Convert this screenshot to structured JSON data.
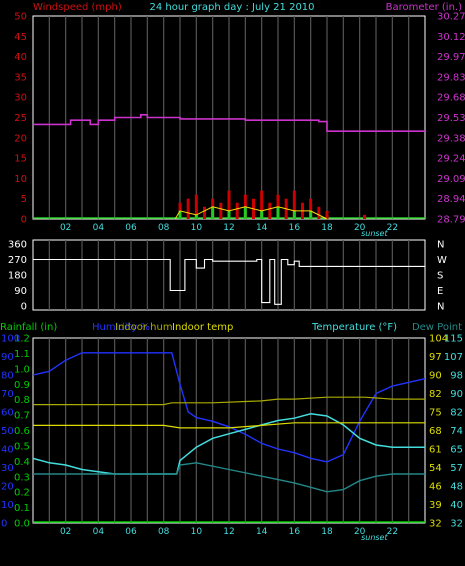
{
  "chart_data": [
    {
      "type": "line",
      "title": "24 hour graph day : July 21 2010",
      "left_axis_title": "Windspeed (mph)",
      "right_axis_title": "Barometer (in.)",
      "x_ticks": [
        "02",
        "04",
        "06",
        "08",
        "10",
        "12",
        "14",
        "16",
        "18",
        "20",
        "22"
      ],
      "x_marker": "sunset",
      "left_ticks": [
        "0",
        "5",
        "10",
        "15",
        "20",
        "25",
        "30",
        "35",
        "40",
        "45",
        "50"
      ],
      "right_ticks": [
        "28.79",
        "28.94",
        "29.09",
        "29.24",
        "29.38",
        "29.53",
        "29.68",
        "29.83",
        "29.97",
        "30.12",
        "30.27"
      ],
      "left_range": [
        0,
        50
      ],
      "right_range": [
        28.79,
        30.27
      ],
      "colors": {
        "barometer": "#cc33cc",
        "wind_gust": "#cc0000",
        "wind_avg": "#22cc22",
        "wind_line": "#ffdd00"
      },
      "series": [
        {
          "key": "barometer",
          "x": [
            0,
            2,
            2.3,
            3.2,
            3.5,
            4,
            4.6,
            5,
            6.6,
            7,
            8.3,
            9,
            11,
            13,
            16,
            17.5,
            18,
            24
          ],
          "y": [
            29.48,
            29.48,
            29.51,
            29.51,
            29.48,
            29.51,
            29.51,
            29.53,
            29.55,
            29.53,
            29.53,
            29.52,
            29.52,
            29.51,
            29.51,
            29.5,
            29.43,
            29.43
          ]
        },
        {
          "key": "wind_gust",
          "x": [
            8.7,
            9,
            9.5,
            10,
            10.5,
            11,
            11.5,
            12,
            12.5,
            13,
            13.5,
            14,
            14.5,
            15,
            15.5,
            16,
            16.5,
            17,
            17.5,
            18,
            20.3
          ],
          "y": [
            0,
            4,
            5,
            6,
            3,
            5,
            4,
            7,
            4,
            6,
            5,
            7,
            4,
            6,
            5,
            7,
            4,
            5,
            3,
            2,
            1
          ]
        },
        {
          "key": "wind_avg",
          "x": [
            8.7,
            9,
            10,
            11,
            12,
            13,
            14,
            15,
            16,
            17,
            18
          ],
          "y": [
            0,
            2,
            1,
            3,
            2,
            3,
            2,
            3,
            2,
            2,
            0
          ]
        }
      ]
    },
    {
      "type": "line",
      "left_ticks": [
        "360",
        "270",
        "180",
        "90",
        "0"
      ],
      "right_labels": [
        "N",
        "W",
        "S",
        "E",
        "N"
      ],
      "y_range": [
        0,
        360
      ],
      "series": [
        {
          "key": "wind_direction",
          "x": [
            0,
            8.3,
            8.4,
            9.2,
            9.3,
            10,
            10.5,
            11,
            13.7,
            14,
            14.5,
            14.8,
            15.2,
            15.6,
            16,
            16.3,
            17,
            24
          ],
          "y": [
            270,
            270,
            90,
            90,
            270,
            220,
            270,
            260,
            270,
            20,
            270,
            10,
            270,
            240,
            260,
            230,
            230,
            230
          ]
        }
      ]
    },
    {
      "type": "line",
      "rainfall_title": "Rainfall (in)",
      "humidity_title": "Humidity %",
      "indoor_hum_title": "Indoor hum",
      "indoor_temp_title": "Indoor temp",
      "temperature_title": "Temperature (°F)",
      "dew_point_title": "Dew Point",
      "x_ticks": [
        "02",
        "04",
        "06",
        "08",
        "10",
        "12",
        "14",
        "16",
        "18",
        "20",
        "22"
      ],
      "x_marker": "sunset",
      "rainfall_ticks": [
        "0.0",
        "0.1",
        "0.2",
        "0.3",
        "0.4",
        "0.5",
        "0.6",
        "0.7",
        "0.8",
        "0.9",
        "1.0",
        "1.1",
        "1.2"
      ],
      "humidity_ticks": [
        "0",
        "10",
        "20",
        "30",
        "40",
        "50",
        "60",
        "70",
        "80",
        "90",
        "100"
      ],
      "indoor_ticks": [
        "32",
        "39",
        "46",
        "54",
        "61",
        "68",
        "75",
        "82",
        "90",
        "97",
        "104"
      ],
      "temp_ticks": [
        "32",
        "40",
        "48",
        "57",
        "65",
        "74",
        "82",
        "90",
        "98",
        "107",
        "115"
      ],
      "colors": {
        "humidity": "#2233ff",
        "temperature": "#44dddd",
        "dew_point": "#228888",
        "indoor_temp": "#dddd00",
        "indoor_hum": "#aaaa00"
      },
      "series": [
        {
          "key": "humidity",
          "x": [
            0,
            1,
            2,
            3,
            4,
            5,
            6,
            7,
            8,
            8.5,
            9,
            9.5,
            10,
            11,
            12,
            13,
            14,
            15,
            16,
            17,
            18,
            19,
            20,
            21,
            22,
            24
          ],
          "y": [
            80,
            82,
            88,
            92,
            92,
            92,
            92,
            92,
            92,
            92,
            75,
            60,
            57,
            55,
            52,
            48,
            43,
            40,
            38,
            35,
            33,
            37,
            55,
            70,
            74,
            78
          ]
        },
        {
          "key": "temperature",
          "x": [
            0,
            1,
            2,
            3,
            4,
            5,
            6,
            7,
            8,
            8.8,
            9,
            10,
            11,
            12,
            13,
            14,
            15,
            16,
            17,
            18,
            19,
            20,
            21,
            22,
            24
          ],
          "y": [
            61,
            59,
            58,
            56,
            55,
            54,
            54,
            54,
            54,
            54,
            60,
            66,
            70,
            72,
            74,
            76,
            78,
            79,
            81,
            80,
            76,
            70,
            67,
            66,
            66
          ]
        },
        {
          "key": "dew_point",
          "x": [
            0,
            2,
            4,
            6,
            8,
            8.8,
            9,
            10,
            12,
            14,
            16,
            17,
            18,
            19,
            20,
            21,
            22,
            24
          ],
          "y": [
            54,
            54,
            54,
            54,
            54,
            54,
            58,
            59,
            56,
            53,
            50,
            48,
            46,
            47,
            51,
            53,
            54,
            54
          ]
        },
        {
          "key": "indoor_temp",
          "x": [
            0,
            8,
            9,
            12,
            14,
            16,
            18,
            20,
            22,
            24
          ],
          "y": [
            70,
            70,
            69,
            69,
            70,
            71,
            71,
            71,
            71,
            71
          ]
        },
        {
          "key": "indoor_hum",
          "x": [
            0,
            8,
            8.5,
            11,
            14,
            15,
            16,
            18,
            20.3,
            22,
            24
          ],
          "y": [
            64,
            64,
            65,
            65,
            66,
            67,
            67,
            68,
            68,
            67,
            67
          ]
        },
        {
          "key": "rainfall",
          "x": [
            0,
            24
          ],
          "y": [
            0,
            0
          ]
        }
      ]
    }
  ]
}
